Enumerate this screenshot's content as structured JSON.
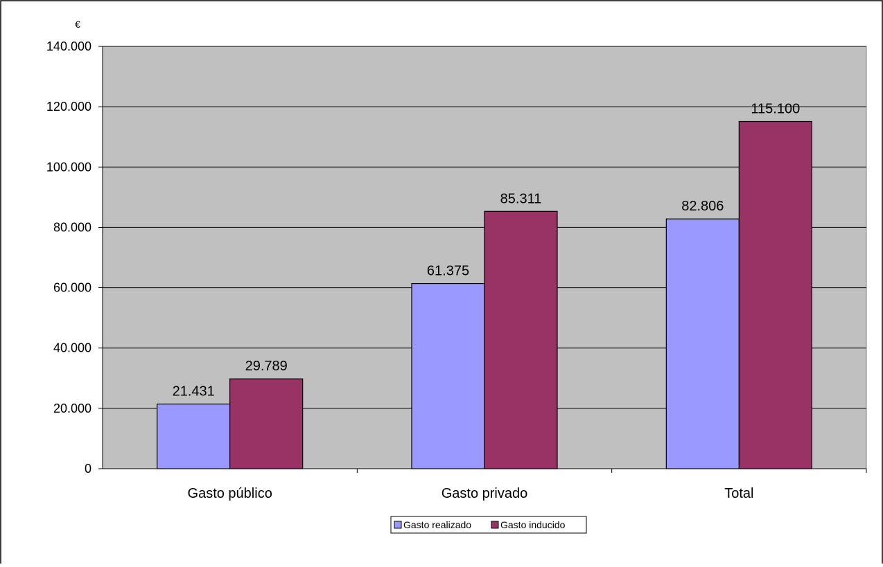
{
  "chart_data": {
    "type": "bar",
    "title": "",
    "xlabel": "",
    "ylabel": "€",
    "categories": [
      "Gasto público",
      "Gasto privado",
      "Total"
    ],
    "series": [
      {
        "name": "Gasto realizado",
        "values": [
          21431,
          61375,
          82806
        ],
        "labels": [
          "21.431",
          "61.375",
          "82.806"
        ],
        "color": "#9999ff"
      },
      {
        "name": "Gasto inducido",
        "values": [
          29789,
          85311,
          115100
        ],
        "labels": [
          "29.789",
          "85.311",
          "115.100"
        ],
        "color": "#993366"
      }
    ],
    "ylim": [
      0,
      140000
    ],
    "yticks": [
      0,
      20000,
      40000,
      60000,
      80000,
      100000,
      120000,
      140000
    ],
    "ytick_labels": [
      "0",
      "20.000",
      "40.000",
      "60.000",
      "80.000",
      "100.000",
      "120.000",
      "140.000"
    ],
    "grid": true,
    "plot_background": "#c0c0c0",
    "legend_position": "bottom"
  }
}
